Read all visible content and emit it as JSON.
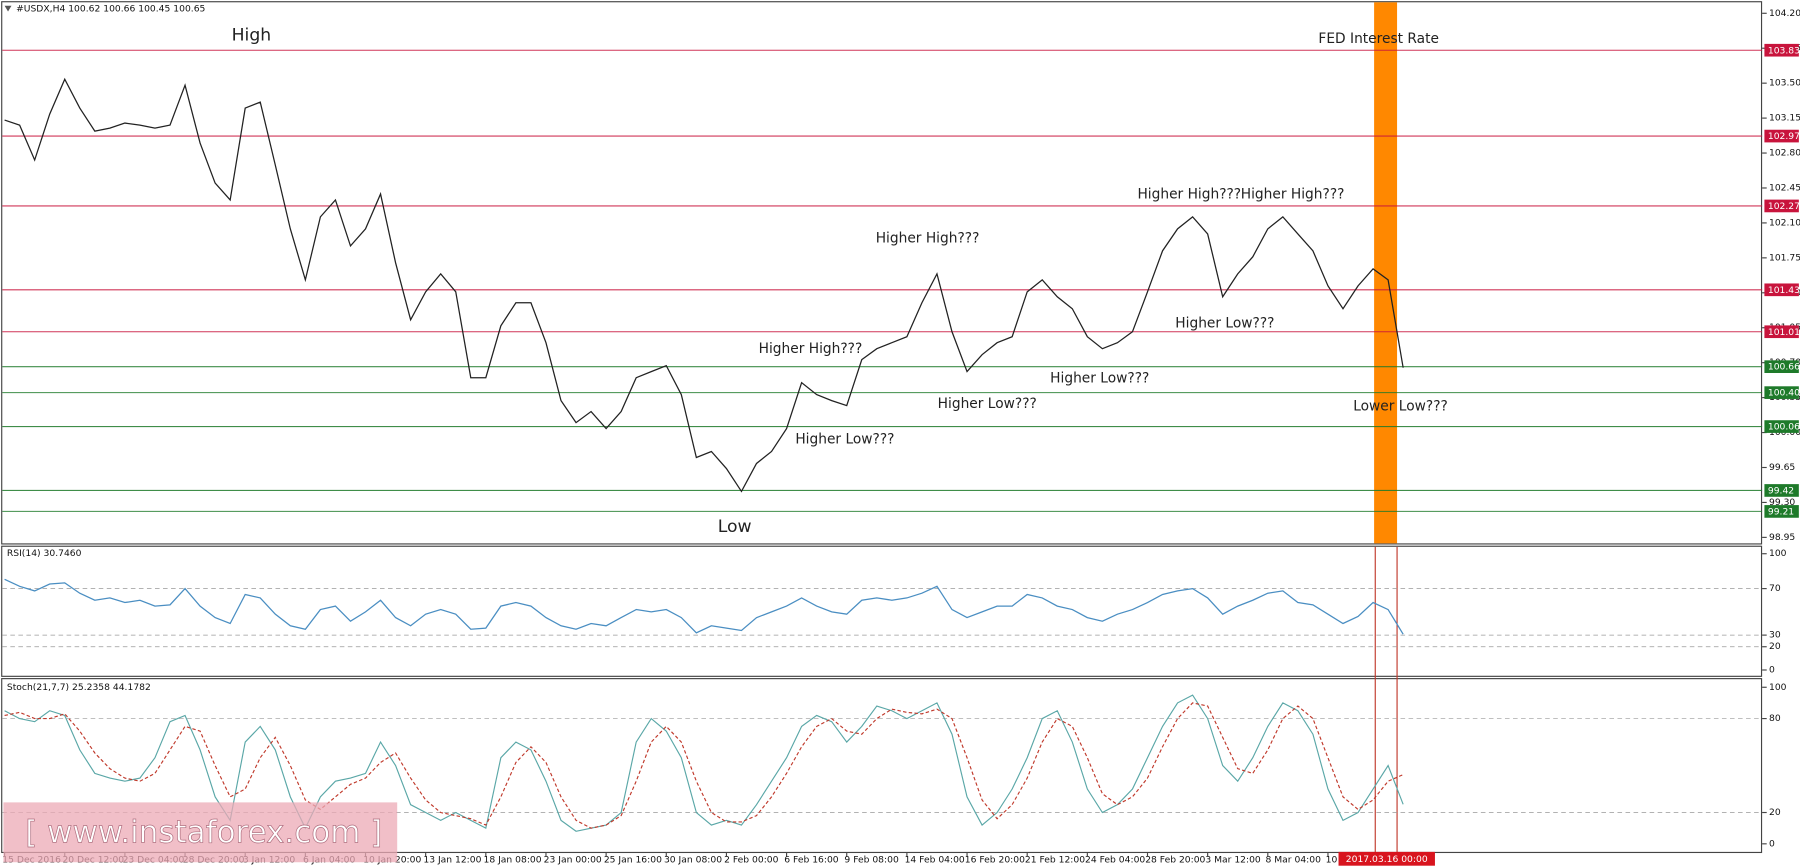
{
  "chart_data": [
    {
      "type": "line",
      "title": "#USDX,H4  100.62 100.66 100.45 100.65",
      "color": "#222222",
      "categories": [
        "15 Dec 2016",
        null,
        null,
        null,
        "20 Dec 12:00",
        null,
        null,
        null,
        "23 Dec 04:00",
        null,
        null,
        null,
        "28 Dec 20:00",
        null,
        null,
        null,
        "3 Jan 12:00",
        null,
        null,
        null,
        "6 Jan 04:00",
        null,
        null,
        null,
        "10 Jan 20:00",
        null,
        null,
        null,
        "13 Jan 12:00",
        null,
        null,
        null,
        "18 Jan 08:00",
        null,
        null,
        null,
        "23 Jan 00:00",
        null,
        null,
        null,
        "25 Jan 16:00",
        null,
        null,
        null,
        "30 Jan 08:00",
        null,
        null,
        null,
        "2 Feb 00:00",
        null,
        null,
        null,
        "6 Feb 16:00",
        null,
        null,
        null,
        "9 Feb 08:00",
        null,
        null,
        null,
        "14 Feb 04:00",
        null,
        null,
        null,
        "16 Feb 20:00",
        null,
        null,
        null,
        "21 Feb 12:00",
        null,
        null,
        null,
        "24 Feb 04:00",
        null,
        null,
        null,
        "28 Feb 20:00",
        null,
        null,
        null,
        "3 Mar 12:00",
        null,
        null,
        null,
        "8 Mar 04:00",
        null,
        null,
        null,
        "10",
        null,
        null,
        null,
        null,
        null
      ],
      "values": [
        103.13,
        103.08,
        102.73,
        103.19,
        103.54,
        103.25,
        103.02,
        103.05,
        103.1,
        103.08,
        103.05,
        103.08,
        103.48,
        102.9,
        102.5,
        102.33,
        103.25,
        103.31,
        102.68,
        102.04,
        101.53,
        102.16,
        102.33,
        101.87,
        102.04,
        102.39,
        101.7,
        101.13,
        101.41,
        101.59,
        101.41,
        100.55,
        100.55,
        101.07,
        101.3,
        101.3,
        100.9,
        100.32,
        100.1,
        100.21,
        100.04,
        100.21,
        100.55,
        100.61,
        100.67,
        100.38,
        99.75,
        99.81,
        99.64,
        99.41,
        99.69,
        99.81,
        100.04,
        100.5,
        100.38,
        100.32,
        100.27,
        100.73,
        100.84,
        100.9,
        100.96,
        101.3,
        101.59,
        101.01,
        100.61,
        100.78,
        100.9,
        100.96,
        101.41,
        101.53,
        101.36,
        101.24,
        100.96,
        100.84,
        100.9,
        101.01,
        101.41,
        101.82,
        102.04,
        102.16,
        101.99,
        101.36,
        101.59,
        101.76,
        102.04,
        102.16,
        101.99,
        101.82,
        101.47,
        101.24,
        101.47,
        101.64,
        101.53,
        100.65
      ],
      "ylim": [
        98.89,
        104.31
      ],
      "yticks": [
        98.95,
        {
          "value": 99.3,
          "label": "99.30"
        },
        99.65,
        {
          "value": 100,
          "label": "100.00"
        },
        100.35,
        {
          "value": 100.7,
          "label": "100.70"
        },
        101.05,
        {
          "value": 101.4,
          "label": "101.40"
        },
        101.75,
        {
          "value": 102.1,
          "label": "102.10"
        },
        102.45,
        {
          "value": 102.8,
          "label": "102.80"
        },
        103.15,
        {
          "value": 103.5,
          "label": "103.50"
        },
        103.85,
        {
          "value": 104.2,
          "label": "104.20"
        }
      ],
      "grid": false,
      "levels": [
        {
          "value": 103.83,
          "color": "#c8143c"
        },
        {
          "value": 102.97,
          "color": "#c8143c"
        },
        {
          "value": 102.27,
          "color": "#c8143c"
        },
        {
          "value": 101.43,
          "color": "#c8143c"
        },
        {
          "value": 101.01,
          "color": "#c8143c"
        },
        {
          "value": 100.66,
          "color": "#1e7a2a"
        },
        {
          "value": 100.4,
          "label": "100.40",
          "color": "#1e7a2a"
        },
        {
          "value": 100.06,
          "color": "#1e7a2a"
        },
        {
          "value": 99.42,
          "color": "#1e7a2a"
        },
        {
          "value": 99.21,
          "color": "#1e7a2a"
        }
      ],
      "annotations": [
        "High",
        "Low",
        "FED Interest Rate",
        "Higher High???",
        "Higher High???",
        "Higher High???",
        "Higher High???",
        "Higher Low???",
        "Higher Low???",
        "Higher Low???",
        "Higher Low???",
        "Lower Low???"
      ],
      "cursor_label": "2017.03.16 00:00",
      "watermark": "[ www.instaforex.com ]"
    },
    {
      "type": "line",
      "title": "RSI(14) 30.7460",
      "color": "#4a8ec2",
      "values": [
        78,
        72,
        68,
        74,
        75,
        66,
        60,
        62,
        58,
        60,
        55,
        56,
        70,
        55,
        45,
        40,
        65,
        62,
        48,
        38,
        35,
        52,
        55,
        42,
        50,
        60,
        45,
        38,
        48,
        52,
        48,
        35,
        36,
        55,
        58,
        55,
        45,
        38,
        35,
        40,
        38,
        45,
        52,
        50,
        52,
        45,
        32,
        38,
        36,
        34,
        45,
        50,
        55,
        62,
        55,
        50,
        48,
        60,
        62,
        60,
        62,
        66,
        72,
        52,
        45,
        50,
        55,
        55,
        65,
        62,
        55,
        52,
        45,
        42,
        48,
        52,
        58,
        65,
        68,
        70,
        62,
        48,
        55,
        60,
        66,
        68,
        58,
        56,
        48,
        40,
        46,
        58,
        52,
        30.746
      ],
      "ylim": [
        0,
        100
      ],
      "yticks": [
        0,
        20,
        30,
        70,
        100
      ],
      "grid": true
    },
    {
      "type": "line",
      "title": "Stoch(21,7,7) 25.2358 44.1782",
      "series": [
        {
          "color": "#5aa7a7",
          "dashed": false,
          "values": [
            85,
            80,
            78,
            85,
            82,
            60,
            45,
            42,
            40,
            42,
            55,
            78,
            82,
            60,
            30,
            15,
            65,
            75,
            60,
            30,
            10,
            30,
            40,
            42,
            45,
            65,
            50,
            25,
            20,
            15,
            20,
            15,
            10,
            55,
            65,
            60,
            40,
            15,
            8,
            10,
            12,
            20,
            65,
            80,
            72,
            55,
            20,
            12,
            15,
            12,
            25,
            40,
            55,
            75,
            82,
            78,
            65,
            75,
            88,
            85,
            80,
            85,
            90,
            70,
            30,
            12,
            20,
            35,
            55,
            80,
            85,
            65,
            35,
            20,
            25,
            35,
            55,
            75,
            90,
            95,
            80,
            50,
            40,
            55,
            75,
            90,
            85,
            70,
            35,
            15,
            20,
            35,
            50,
            25.2358
          ]
        },
        {
          "color": "#c0392b",
          "dashed": true,
          "values": [
            82,
            84,
            80,
            80,
            83,
            72,
            58,
            48,
            42,
            40,
            45,
            60,
            75,
            72,
            50,
            30,
            35,
            55,
            68,
            50,
            28,
            22,
            30,
            38,
            42,
            52,
            58,
            42,
            28,
            20,
            18,
            16,
            12,
            30,
            52,
            62,
            52,
            30,
            15,
            10,
            12,
            18,
            40,
            65,
            75,
            65,
            40,
            20,
            14,
            14,
            18,
            30,
            45,
            62,
            75,
            80,
            72,
            70,
            80,
            86,
            84,
            83,
            86,
            80,
            55,
            28,
            16,
            25,
            42,
            65,
            80,
            75,
            55,
            32,
            25,
            30,
            42,
            62,
            80,
            90,
            88,
            68,
            48,
            45,
            60,
            80,
            88,
            80,
            55,
            30,
            22,
            28,
            40,
            44.1782
          ]
        }
      ],
      "ylim": [
        0,
        100
      ],
      "yticks": [
        0,
        20,
        80,
        100
      ],
      "grid": true
    }
  ]
}
